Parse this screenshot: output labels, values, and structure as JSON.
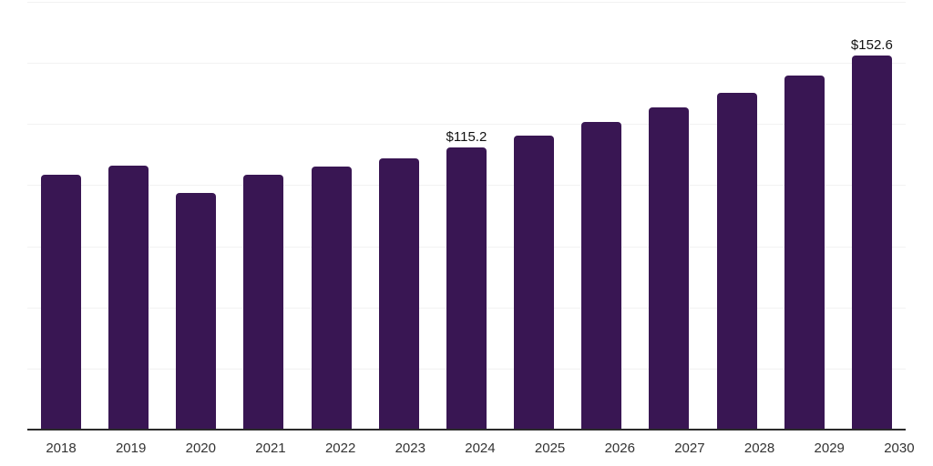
{
  "chart_data": {
    "type": "bar",
    "title": "",
    "xlabel": "",
    "ylabel": "",
    "categories": [
      "2018",
      "2019",
      "2020",
      "2021",
      "2022",
      "2023",
      "2024",
      "2025",
      "2026",
      "2027",
      "2028",
      "2029",
      "2030"
    ],
    "values": [
      103.9,
      107.5,
      96.4,
      103.8,
      107.2,
      110.6,
      115.2,
      119.9,
      125.4,
      131.3,
      137.3,
      144.6,
      152.6
    ],
    "data_labels": [
      "",
      "",
      "",
      "",
      "",
      "",
      "$115.2",
      "",
      "",
      "",
      "",
      "",
      "$152.6"
    ],
    "ylim": [
      0,
      175
    ],
    "grid_step": 25,
    "grid": true,
    "legend": false,
    "colors": {
      "bar": "#391653",
      "gridline": "#f2f2f2",
      "axis_line": "#2b2b2b",
      "tick_label": "#333333",
      "data_label": "#111111",
      "background": "#ffffff"
    }
  }
}
